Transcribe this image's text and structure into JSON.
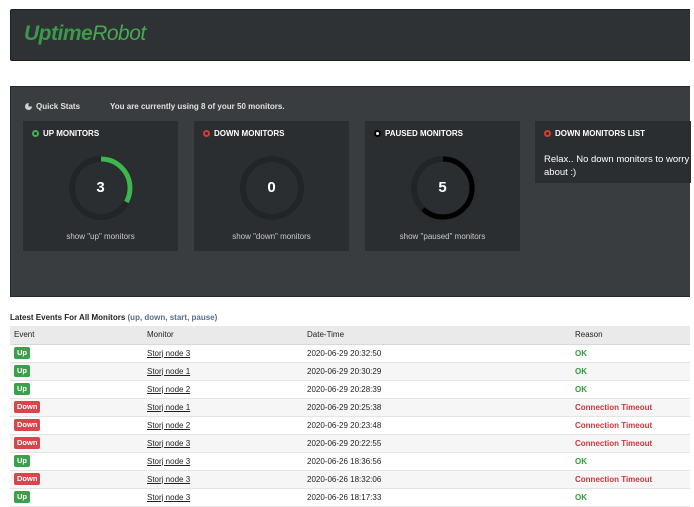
{
  "header": {
    "logo_bold": "Uptime",
    "logo_light": "Robot"
  },
  "quick_stats": {
    "title": "Quick Stats",
    "usage_text": "You are currently using 8 of your 50 monitors."
  },
  "cards": {
    "up": {
      "title": "UP MONITORS",
      "count": "3",
      "link": "show \"up\" monitors",
      "ring_fraction": 0.33,
      "ring_color": "#3fb54e"
    },
    "down": {
      "title": "DOWN MONITORS",
      "count": "0",
      "link": "show \"down\" monitors",
      "ring_fraction": 0,
      "ring_color": "#e0392f"
    },
    "paused": {
      "title": "PAUSED MONITORS",
      "count": "5",
      "link": "show \"paused\" monitors",
      "ring_fraction": 0.62,
      "ring_color": "#000000"
    },
    "down_list": {
      "title": "DOWN MONITORS LIST",
      "message": "Relax.. No down monitors to worry about :)"
    }
  },
  "events": {
    "title": "Latest Events For All Monitors",
    "filter_label": "(up, down, start, pause)",
    "columns": [
      "Event",
      "Monitor",
      "Date-Time",
      "Reason"
    ],
    "rows": [
      {
        "event": "Up",
        "type": "up",
        "monitor": "Storj node 3",
        "datetime": "2020-06-29 20:32:50",
        "reason": "OK"
      },
      {
        "event": "Up",
        "type": "up",
        "monitor": "Storj node 1",
        "datetime": "2020-06-29 20:30:29",
        "reason": "OK"
      },
      {
        "event": "Up",
        "type": "up",
        "monitor": "Storj node 2",
        "datetime": "2020-06-29 20:28:39",
        "reason": "OK"
      },
      {
        "event": "Down",
        "type": "down",
        "monitor": "Storj node 1",
        "datetime": "2020-06-29 20:25:38",
        "reason": "Connection Timeout"
      },
      {
        "event": "Down",
        "type": "down",
        "monitor": "Storj node 2",
        "datetime": "2020-06-29 20:23:48",
        "reason": "Connection Timeout"
      },
      {
        "event": "Down",
        "type": "down",
        "monitor": "Storj node 3",
        "datetime": "2020-06-29 20:22:55",
        "reason": "Connection Timeout"
      },
      {
        "event": "Up",
        "type": "up",
        "monitor": "Storj node 3",
        "datetime": "2020-06-26 18:36:56",
        "reason": "OK"
      },
      {
        "event": "Down",
        "type": "down",
        "monitor": "Storj node 3",
        "datetime": "2020-06-26 18:32:06",
        "reason": "Connection Timeout"
      },
      {
        "event": "Up",
        "type": "up",
        "monitor": "Storj node 3",
        "datetime": "2020-06-26 18:17:33",
        "reason": "OK"
      }
    ]
  }
}
